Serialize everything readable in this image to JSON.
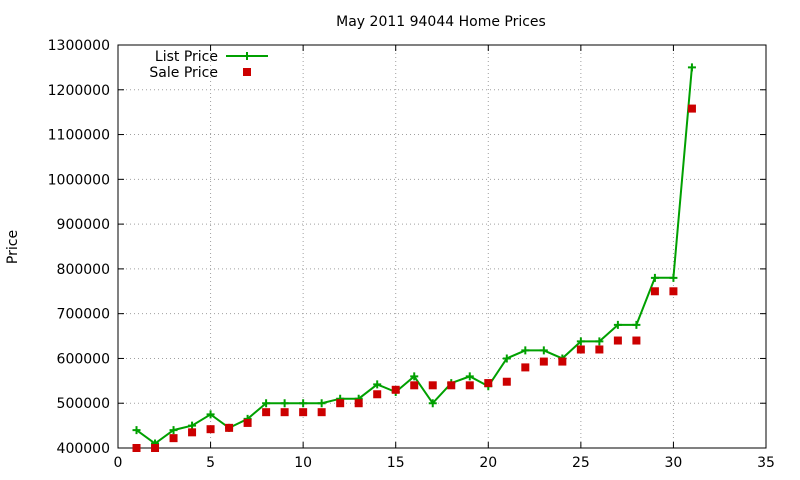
{
  "chart_data": {
    "type": "line",
    "title": "May 2011 94044 Home Prices",
    "xlabel": "",
    "ylabel": "Price",
    "xlim": [
      0,
      35
    ],
    "ylim": [
      400000,
      1300000
    ],
    "x_ticks": [
      0,
      5,
      10,
      15,
      20,
      25,
      30,
      35
    ],
    "y_ticks": [
      400000,
      500000,
      600000,
      700000,
      800000,
      900000,
      1000000,
      1100000,
      1200000,
      1300000
    ],
    "grid": true,
    "legend_position": "top-left",
    "series": [
      {
        "name": "List Price",
        "style": "line-with-plus-markers",
        "color": "#00a000",
        "points": [
          [
            1,
            440000
          ],
          [
            2,
            410000
          ],
          [
            3,
            440000
          ],
          [
            4,
            450000
          ],
          [
            5,
            475000
          ],
          [
            6,
            445000
          ],
          [
            7,
            465000
          ],
          [
            8,
            500000
          ],
          [
            9,
            500000
          ],
          [
            10,
            500000
          ],
          [
            11,
            500000
          ],
          [
            12,
            510000
          ],
          [
            13,
            510000
          ],
          [
            14,
            542000
          ],
          [
            15,
            525000
          ],
          [
            16,
            560000
          ],
          [
            17,
            500000
          ],
          [
            18,
            545000
          ],
          [
            19,
            560000
          ],
          [
            20,
            538000
          ],
          [
            21,
            600000
          ],
          [
            22,
            618000
          ],
          [
            23,
            618000
          ],
          [
            24,
            600000
          ],
          [
            25,
            638000
          ],
          [
            26,
            638000
          ],
          [
            27,
            675000
          ],
          [
            28,
            675000
          ],
          [
            29,
            780000
          ],
          [
            30,
            780000
          ],
          [
            31,
            1250000
          ]
        ]
      },
      {
        "name": "Sale Price",
        "style": "square-markers",
        "color": "#cc0000",
        "points": [
          [
            1,
            400000
          ],
          [
            2,
            400000
          ],
          [
            3,
            422000
          ],
          [
            4,
            435000
          ],
          [
            5,
            442000
          ],
          [
            6,
            445000
          ],
          [
            7,
            456000
          ],
          [
            8,
            480000
          ],
          [
            9,
            480000
          ],
          [
            10,
            480000
          ],
          [
            11,
            480000
          ],
          [
            12,
            500000
          ],
          [
            13,
            500000
          ],
          [
            14,
            520000
          ],
          [
            15,
            530000
          ],
          [
            16,
            540000
          ],
          [
            17,
            540000
          ],
          [
            18,
            540000
          ],
          [
            19,
            540000
          ],
          [
            20,
            545000
          ],
          [
            21,
            548000
          ],
          [
            22,
            580000
          ],
          [
            23,
            593000
          ],
          [
            24,
            593000
          ],
          [
            25,
            620000
          ],
          [
            26,
            620000
          ],
          [
            27,
            640000
          ],
          [
            28,
            640000
          ],
          [
            29,
            750000
          ],
          [
            30,
            750000
          ],
          [
            31,
            1158000
          ]
        ]
      }
    ]
  }
}
